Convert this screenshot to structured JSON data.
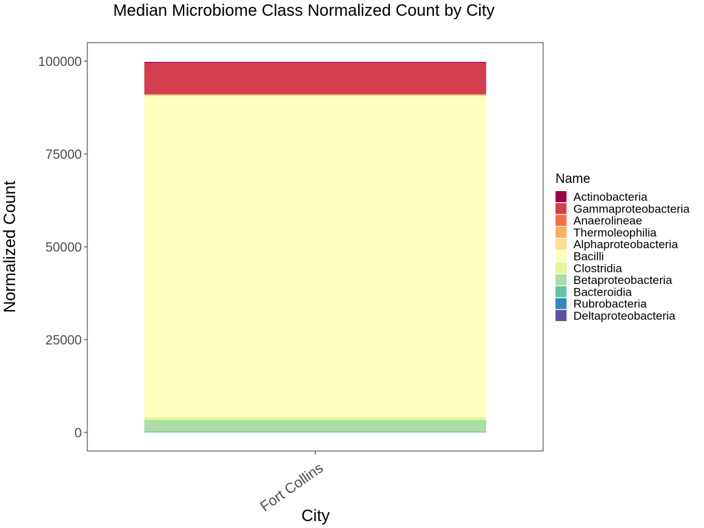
{
  "chart_data": {
    "type": "bar",
    "stacked": true,
    "title": "Median Microbiome Class Normalized Count by City",
    "xlabel": "City",
    "ylabel": "Normalized Count",
    "categories": [
      "Fort Collins"
    ],
    "ylim": [
      -5000,
      105000
    ],
    "yticks": [
      0,
      25000,
      50000,
      75000,
      100000
    ],
    "ytick_labels": [
      "0",
      "25000",
      "50000",
      "75000",
      "100000"
    ],
    "grid": false,
    "legend": {
      "title": "Name",
      "position": "right"
    },
    "series": [
      {
        "name": "Actinobacteria",
        "color": "#9E0142",
        "values": [
          250
        ]
      },
      {
        "name": "Gammaproteobacteria",
        "color": "#D53E4F",
        "values": [
          8500
        ]
      },
      {
        "name": "Anaerolineae",
        "color": "#F46D43",
        "values": [
          50
        ]
      },
      {
        "name": "Thermoleophilia",
        "color": "#FDAE61",
        "values": [
          50
        ]
      },
      {
        "name": "Alphaproteobacteria",
        "color": "#FEE08B",
        "values": [
          400
        ]
      },
      {
        "name": "Bacilli",
        "color": "#FFFFBF",
        "values": [
          86500
        ]
      },
      {
        "name": "Clostridia",
        "color": "#E6F598",
        "values": [
          700
        ]
      },
      {
        "name": "Betaproteobacteria",
        "color": "#ABDDA4",
        "values": [
          3100
        ]
      },
      {
        "name": "Bacteroidia",
        "color": "#66C2A5",
        "values": [
          150
        ]
      },
      {
        "name": "Rubrobacteria",
        "color": "#3288BD",
        "values": [
          50
        ]
      },
      {
        "name": "Deltaproteobacteria",
        "color": "#5E4FA2",
        "values": [
          50
        ]
      }
    ]
  }
}
